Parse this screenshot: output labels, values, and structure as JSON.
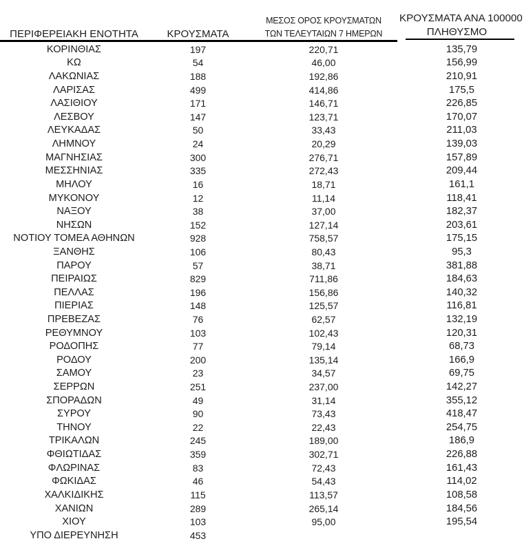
{
  "table": {
    "columns": {
      "region": {
        "label": "ΠΕΡΙΦΕΡΕΙΑΚΗ ΕΝΟΤΗΤΑ"
      },
      "cases": {
        "label": "ΚΡΟΥΣΜΑΤΑ"
      },
      "avg_7day": {
        "label_line1": "ΜΕΣΟΣ ΟΡΟΣ ΚΡΟΥΣΜΑΤΩΝ",
        "label_line2": "ΤΩΝ ΤΕΛΕΥΤΑΙΩΝ 7 ΗΜΕΡΩΝ"
      },
      "per_100000": {
        "label_line1": "ΚΡΟΥΣΜΑΤΑ ΑΝΑ 100000",
        "label_line2": "ΠΛΗΘΥΣΜΟ"
      }
    },
    "rows": [
      {
        "region": "ΚΟΡΙΝΘΙΑΣ",
        "cases": "197",
        "avg_7day": "220,71",
        "per_100000": "135,79"
      },
      {
        "region": "ΚΩ",
        "cases": "54",
        "avg_7day": "46,00",
        "per_100000": "156,99"
      },
      {
        "region": "ΛΑΚΩΝΙΑΣ",
        "cases": "188",
        "avg_7day": "192,86",
        "per_100000": "210,91"
      },
      {
        "region": "ΛΑΡΙΣΑΣ",
        "cases": "499",
        "avg_7day": "414,86",
        "per_100000": "175,5"
      },
      {
        "region": "ΛΑΣΙΘΙΟΥ",
        "cases": "171",
        "avg_7day": "146,71",
        "per_100000": "226,85"
      },
      {
        "region": "ΛΕΣΒΟΥ",
        "cases": "147",
        "avg_7day": "123,71",
        "per_100000": "170,07"
      },
      {
        "region": "ΛΕΥΚΑΔΑΣ",
        "cases": "50",
        "avg_7day": "33,43",
        "per_100000": "211,03"
      },
      {
        "region": "ΛΗΜΝΟΥ",
        "cases": "24",
        "avg_7day": "20,29",
        "per_100000": "139,03"
      },
      {
        "region": "ΜΑΓΝΗΣΙΑΣ",
        "cases": "300",
        "avg_7day": "276,71",
        "per_100000": "157,89"
      },
      {
        "region": "ΜΕΣΣΗΝΙΑΣ",
        "cases": "335",
        "avg_7day": "272,43",
        "per_100000": "209,44"
      },
      {
        "region": "ΜΗΛΟΥ",
        "cases": "16",
        "avg_7day": "18,71",
        "per_100000": "161,1"
      },
      {
        "region": "ΜΥΚΟΝΟΥ",
        "cases": "12",
        "avg_7day": "11,14",
        "per_100000": "118,41"
      },
      {
        "region": "ΝΑΞΟΥ",
        "cases": "38",
        "avg_7day": "37,00",
        "per_100000": "182,37"
      },
      {
        "region": "ΝΗΣΩΝ",
        "cases": "152",
        "avg_7day": "127,14",
        "per_100000": "203,61"
      },
      {
        "region": "ΝΟΤΙΟΥ ΤΟΜΕΑ ΑΘΗΝΩΝ",
        "cases": "928",
        "avg_7day": "758,57",
        "per_100000": "175,15"
      },
      {
        "region": "ΞΑΝΘΗΣ",
        "cases": "106",
        "avg_7day": "80,43",
        "per_100000": "95,3"
      },
      {
        "region": "ΠΑΡΟΥ",
        "cases": "57",
        "avg_7day": "38,71",
        "per_100000": "381,88"
      },
      {
        "region": "ΠΕΙΡΑΙΩΣ",
        "cases": "829",
        "avg_7day": "711,86",
        "per_100000": "184,63"
      },
      {
        "region": "ΠΕΛΛΑΣ",
        "cases": "196",
        "avg_7day": "156,86",
        "per_100000": "140,32"
      },
      {
        "region": "ΠΙΕΡΙΑΣ",
        "cases": "148",
        "avg_7day": "125,57",
        "per_100000": "116,81"
      },
      {
        "region": "ΠΡΕΒΕΖΑΣ",
        "cases": "76",
        "avg_7day": "62,57",
        "per_100000": "132,19"
      },
      {
        "region": "ΡΕΘΥΜΝΟΥ",
        "cases": "103",
        "avg_7day": "102,43",
        "per_100000": "120,31"
      },
      {
        "region": "ΡΟΔΟΠΗΣ",
        "cases": "77",
        "avg_7day": "79,14",
        "per_100000": "68,73"
      },
      {
        "region": "ΡΟΔΟΥ",
        "cases": "200",
        "avg_7day": "135,14",
        "per_100000": "166,9"
      },
      {
        "region": "ΣΑΜΟΥ",
        "cases": "23",
        "avg_7day": "34,57",
        "per_100000": "69,75"
      },
      {
        "region": "ΣΕΡΡΩΝ",
        "cases": "251",
        "avg_7day": "237,00",
        "per_100000": "142,27"
      },
      {
        "region": "ΣΠΟΡΑΔΩΝ",
        "cases": "49",
        "avg_7day": "31,14",
        "per_100000": "355,12"
      },
      {
        "region": "ΣΥΡΟΥ",
        "cases": "90",
        "avg_7day": "73,43",
        "per_100000": "418,47"
      },
      {
        "region": "ΤΗΝΟΥ",
        "cases": "22",
        "avg_7day": "22,43",
        "per_100000": "254,75"
      },
      {
        "region": "ΤΡΙΚΑΛΩΝ",
        "cases": "245",
        "avg_7day": "189,00",
        "per_100000": "186,9"
      },
      {
        "region": "ΦΘΙΩΤΙΔΑΣ",
        "cases": "359",
        "avg_7day": "302,71",
        "per_100000": "226,88"
      },
      {
        "region": "ΦΛΩΡΙΝΑΣ",
        "cases": "83",
        "avg_7day": "72,43",
        "per_100000": "161,43"
      },
      {
        "region": "ΦΩΚΙΔΑΣ",
        "cases": "46",
        "avg_7day": "54,43",
        "per_100000": "114,02"
      },
      {
        "region": "ΧΑΛΚΙΔΙΚΗΣ",
        "cases": "115",
        "avg_7day": "113,57",
        "per_100000": "108,58"
      },
      {
        "region": "ΧΑΝΙΩΝ",
        "cases": "289",
        "avg_7day": "265,14",
        "per_100000": "184,56"
      },
      {
        "region": "ΧΙΟΥ",
        "cases": "103",
        "avg_7day": "95,00",
        "per_100000": "195,54"
      },
      {
        "region": "ΥΠΟ ΔΙΕΡΕΥΝΗΣΗ",
        "cases": "453",
        "avg_7day": "",
        "per_100000": ""
      }
    ]
  },
  "colors": {
    "text": "#1c1c1c",
    "rule": "#000000",
    "background": "#ffffff"
  }
}
